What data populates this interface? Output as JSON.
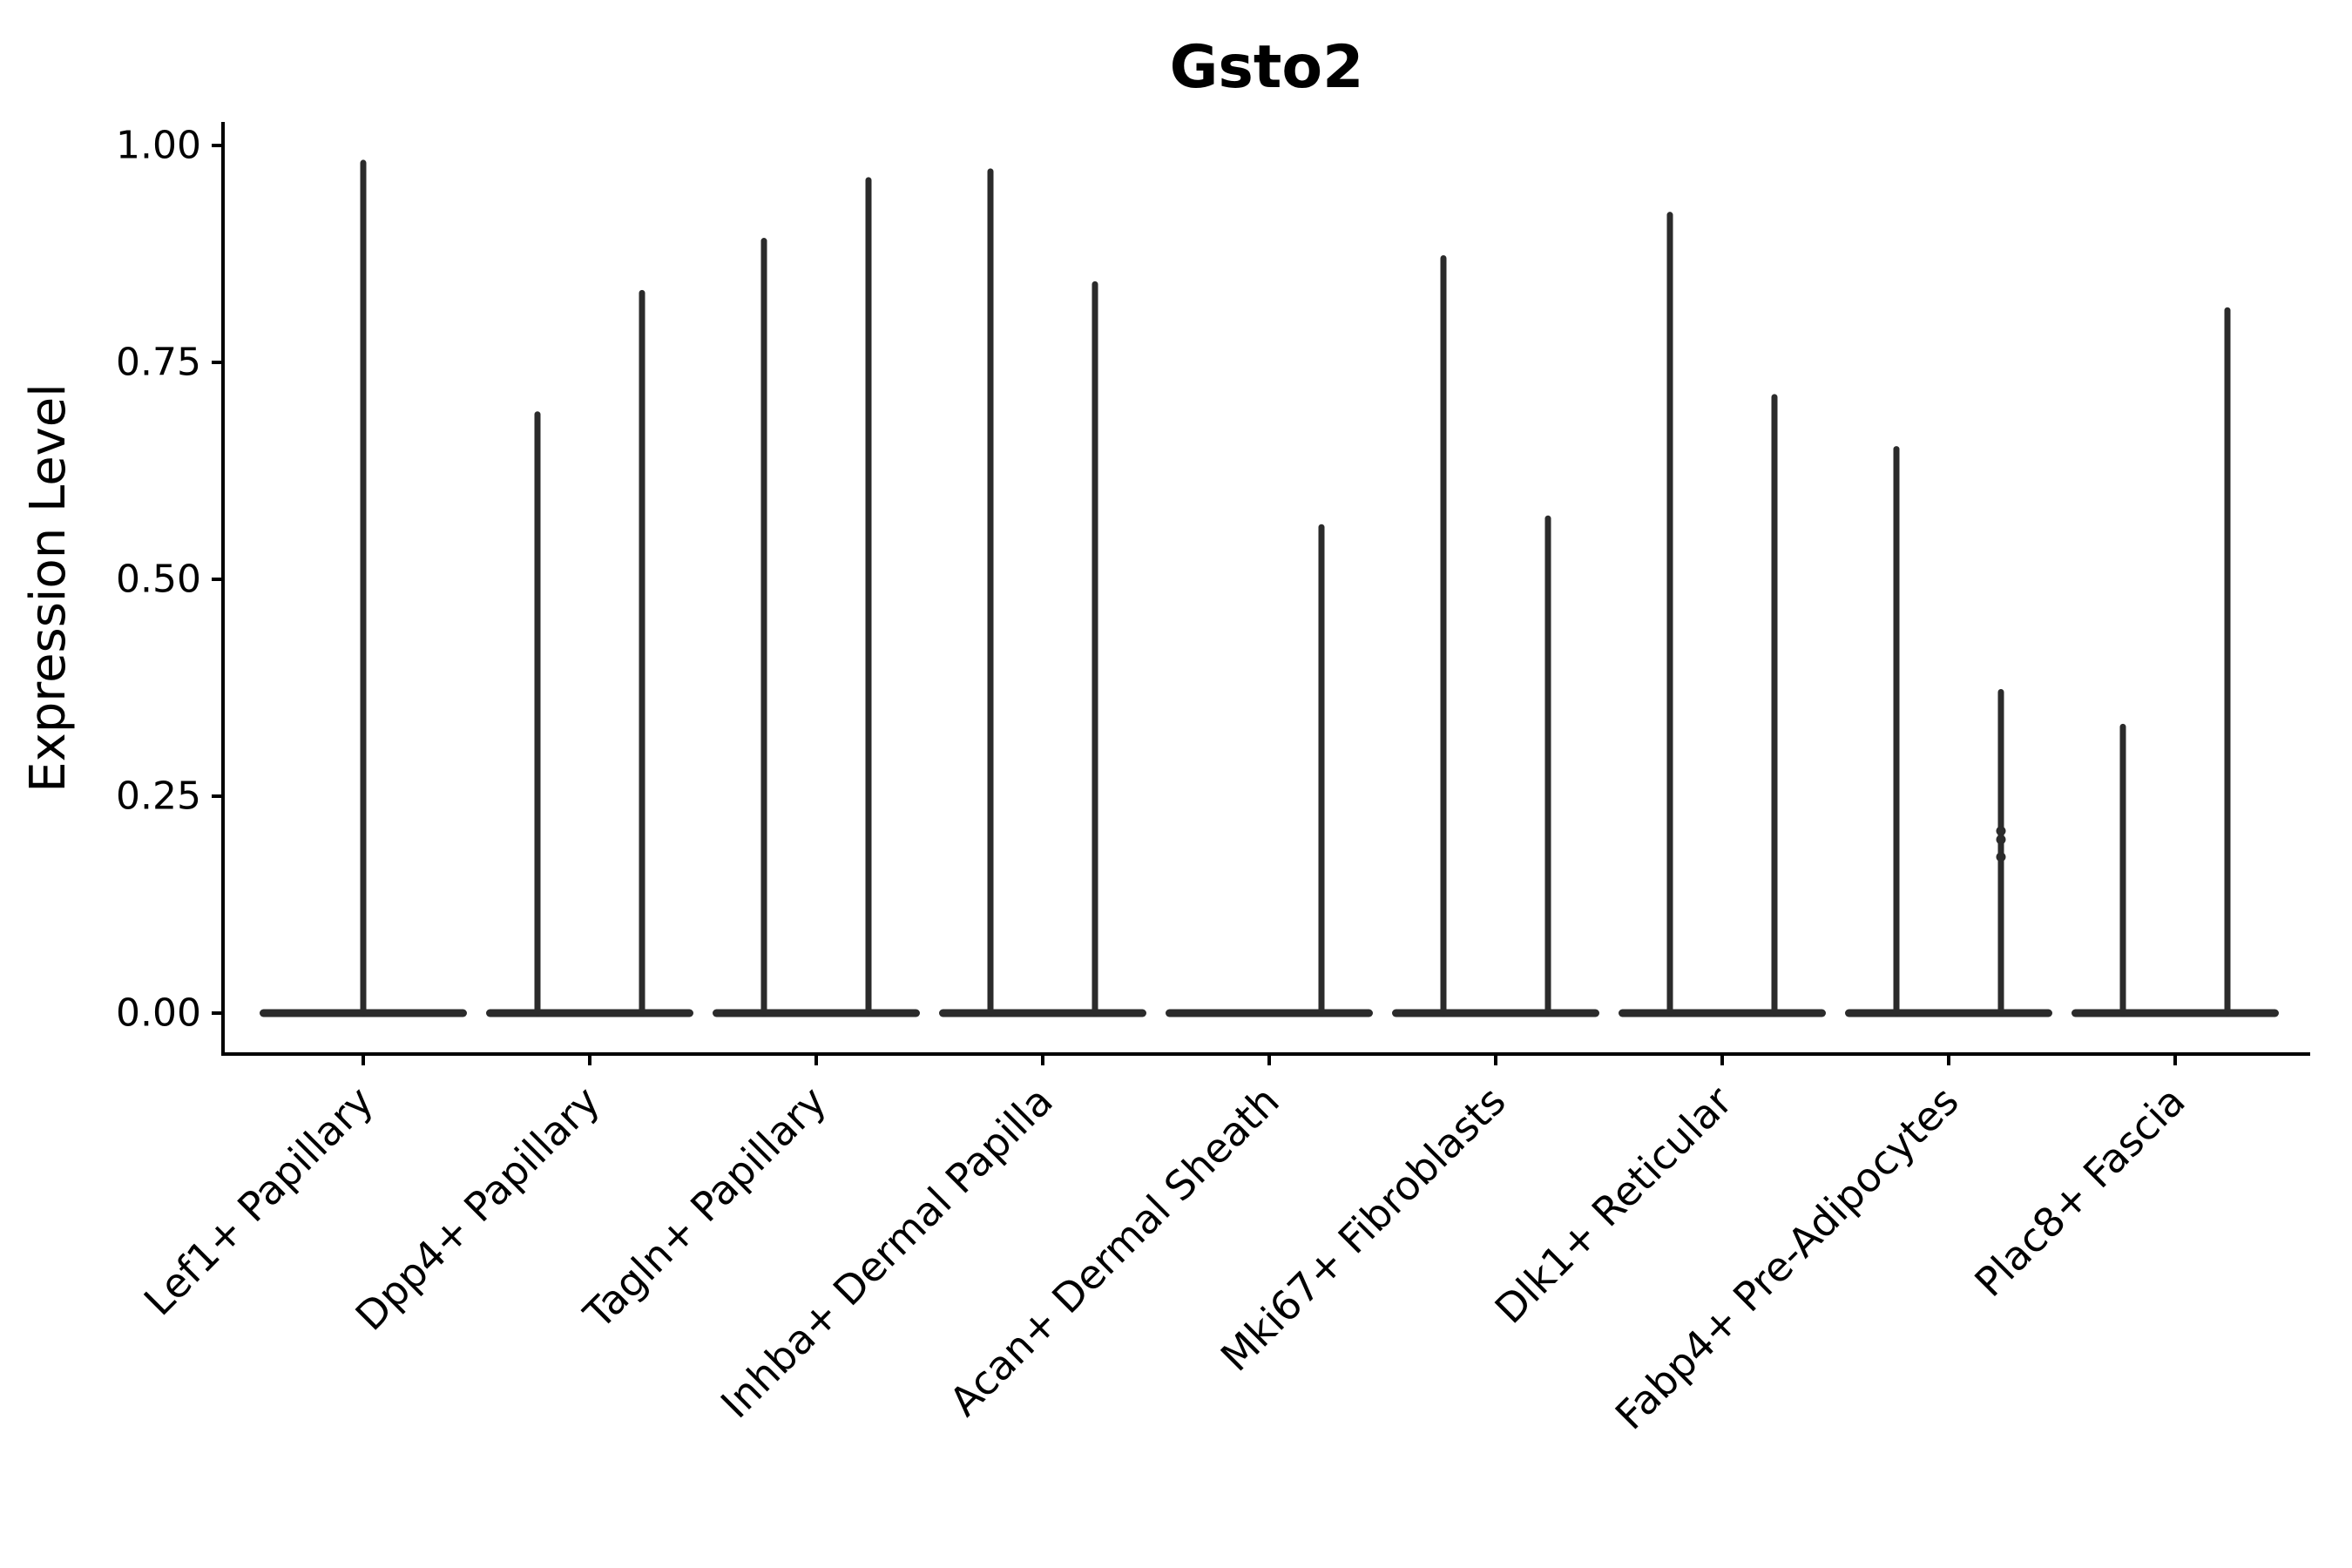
{
  "chart_data": {
    "type": "violin",
    "title": "Gsto2",
    "ylabel": "Expression Level",
    "xlabel": "",
    "ylim": [
      0.0,
      1.0
    ],
    "yticks": [
      0.0,
      0.25,
      0.5,
      0.75,
      1.0
    ],
    "ytick_labels": [
      "0.00",
      "0.25",
      "0.50",
      "0.75",
      "1.00"
    ],
    "grid": false,
    "legend": false,
    "violin_color": "#2b2b2b",
    "axis_color": "#000000",
    "categories": [
      "Lef1+ Papillary",
      "Dpp4+ Papillary",
      "Tagln+ Papillary",
      "Inhba+ Dermal Papilla",
      "Acan+ Dermal Sheath",
      "Mki67+ Fibroblasts",
      "Dlk1+ Reticular",
      "Fabp4+ Pre-Adipocytes",
      "Plac8+ Fascia"
    ],
    "violins": [
      {
        "category": "Lef1+ Papillary",
        "baseline_value": 0.0,
        "spikes": [
          {
            "position": "center",
            "max": 0.98
          }
        ],
        "points": []
      },
      {
        "category": "Dpp4+ Papillary",
        "baseline_value": 0.0,
        "spikes": [
          {
            "position": "left",
            "max": 0.69
          },
          {
            "position": "right",
            "max": 0.83
          }
        ],
        "points": []
      },
      {
        "category": "Tagln+ Papillary",
        "baseline_value": 0.0,
        "spikes": [
          {
            "position": "left",
            "max": 0.89
          },
          {
            "position": "right",
            "max": 0.96
          }
        ],
        "points": []
      },
      {
        "category": "Inhba+ Dermal Papilla",
        "baseline_value": 0.0,
        "spikes": [
          {
            "position": "left",
            "max": 0.97
          },
          {
            "position": "right",
            "max": 0.84
          }
        ],
        "points": []
      },
      {
        "category": "Acan+ Dermal Sheath",
        "baseline_value": 0.0,
        "spikes": [
          {
            "position": "right",
            "max": 0.56
          }
        ],
        "points": []
      },
      {
        "category": "Mki67+ Fibroblasts",
        "baseline_value": 0.0,
        "spikes": [
          {
            "position": "left",
            "max": 0.87
          },
          {
            "position": "right",
            "max": 0.57
          }
        ],
        "points": []
      },
      {
        "category": "Dlk1+ Reticular",
        "baseline_value": 0.0,
        "spikes": [
          {
            "position": "left",
            "max": 0.92
          },
          {
            "position": "right",
            "max": 0.71
          }
        ],
        "points": []
      },
      {
        "category": "Fabp4+ Pre-Adipocytes",
        "baseline_value": 0.0,
        "spikes": [
          {
            "position": "left",
            "max": 0.65
          },
          {
            "position": "right",
            "max": 0.37
          }
        ],
        "points": [
          {
            "position": "right",
            "values": [
              0.21,
              0.2,
              0.18
            ]
          }
        ]
      },
      {
        "category": "Plac8+ Fascia",
        "baseline_value": 0.0,
        "spikes": [
          {
            "position": "left",
            "max": 0.33
          },
          {
            "position": "right",
            "max": 0.81
          }
        ],
        "points": []
      }
    ]
  }
}
